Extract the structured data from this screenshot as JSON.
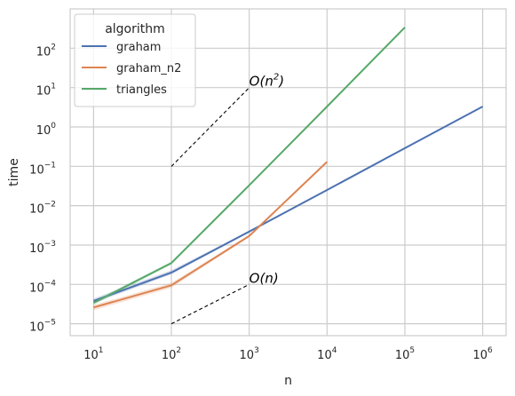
{
  "chart_data": {
    "type": "line",
    "xlabel": "n",
    "ylabel": "time",
    "xscale": "log",
    "yscale": "log",
    "xlim": [
      5,
      2000000
    ],
    "ylim": [
      5e-06,
      1000
    ],
    "grid": true,
    "legend": {
      "title": "algorithm",
      "placement": "top-left"
    },
    "x_ticks": [
      {
        "value": 10,
        "base": "10",
        "exp": "1"
      },
      {
        "value": 100,
        "base": "10",
        "exp": "2"
      },
      {
        "value": 1000,
        "base": "10",
        "exp": "3"
      },
      {
        "value": 10000,
        "base": "10",
        "exp": "4"
      },
      {
        "value": 100000,
        "base": "10",
        "exp": "5"
      },
      {
        "value": 1000000,
        "base": "10",
        "exp": "6"
      }
    ],
    "y_ticks": [
      {
        "value": 1e-05,
        "base": "10",
        "exp": "−5"
      },
      {
        "value": 0.0001,
        "base": "10",
        "exp": "−4"
      },
      {
        "value": 0.001,
        "base": "10",
        "exp": "−3"
      },
      {
        "value": 0.01,
        "base": "10",
        "exp": "−2"
      },
      {
        "value": 0.1,
        "base": "10",
        "exp": "−1"
      },
      {
        "value": 1,
        "base": "10",
        "exp": "0"
      },
      {
        "value": 10,
        "base": "10",
        "exp": "1"
      },
      {
        "value": 100,
        "base": "10",
        "exp": "2"
      }
    ],
    "series": [
      {
        "name": "graham",
        "color": "#4c72b0",
        "x": [
          10,
          100,
          1000,
          10000,
          100000,
          1000000
        ],
        "y": [
          3.8e-05,
          0.0002,
          0.0022,
          0.025,
          0.29,
          3.3
        ],
        "y_low": [
          3.3e-05,
          0.00018,
          0.0021,
          0.024,
          0.28,
          3.2
        ],
        "y_high": [
          4.4e-05,
          0.00023,
          0.0023,
          0.026,
          0.3,
          3.4
        ]
      },
      {
        "name": "graham_n2",
        "color": "#dd8452",
        "x": [
          10,
          100,
          1000,
          10000
        ],
        "y": [
          2.6e-05,
          9.5e-05,
          0.0017,
          0.13
        ],
        "y_low": [
          2.2e-05,
          8.2e-05,
          0.0016,
          0.125
        ],
        "y_high": [
          3e-05,
          0.00011,
          0.0018,
          0.135
        ]
      },
      {
        "name": "triangles",
        "color": "#55a868",
        "x": [
          10,
          100,
          1000,
          10000,
          100000
        ],
        "y": [
          3.4e-05,
          0.00035,
          0.033,
          3.3,
          340
        ],
        "y_low": [
          3e-05,
          0.00032,
          0.032,
          3.2,
          335
        ],
        "y_high": [
          3.8e-05,
          0.00038,
          0.034,
          3.4,
          345
        ]
      }
    ],
    "reference_lines": [
      {
        "label_base": "O(n",
        "label_exp": "2",
        "label_tail": ")",
        "x": [
          100,
          1000
        ],
        "y": [
          0.1,
          10
        ]
      },
      {
        "label_base": "O(n)",
        "label_exp": "",
        "label_tail": "",
        "x": [
          100,
          1000
        ],
        "y": [
          1e-05,
          0.0001
        ]
      }
    ]
  }
}
